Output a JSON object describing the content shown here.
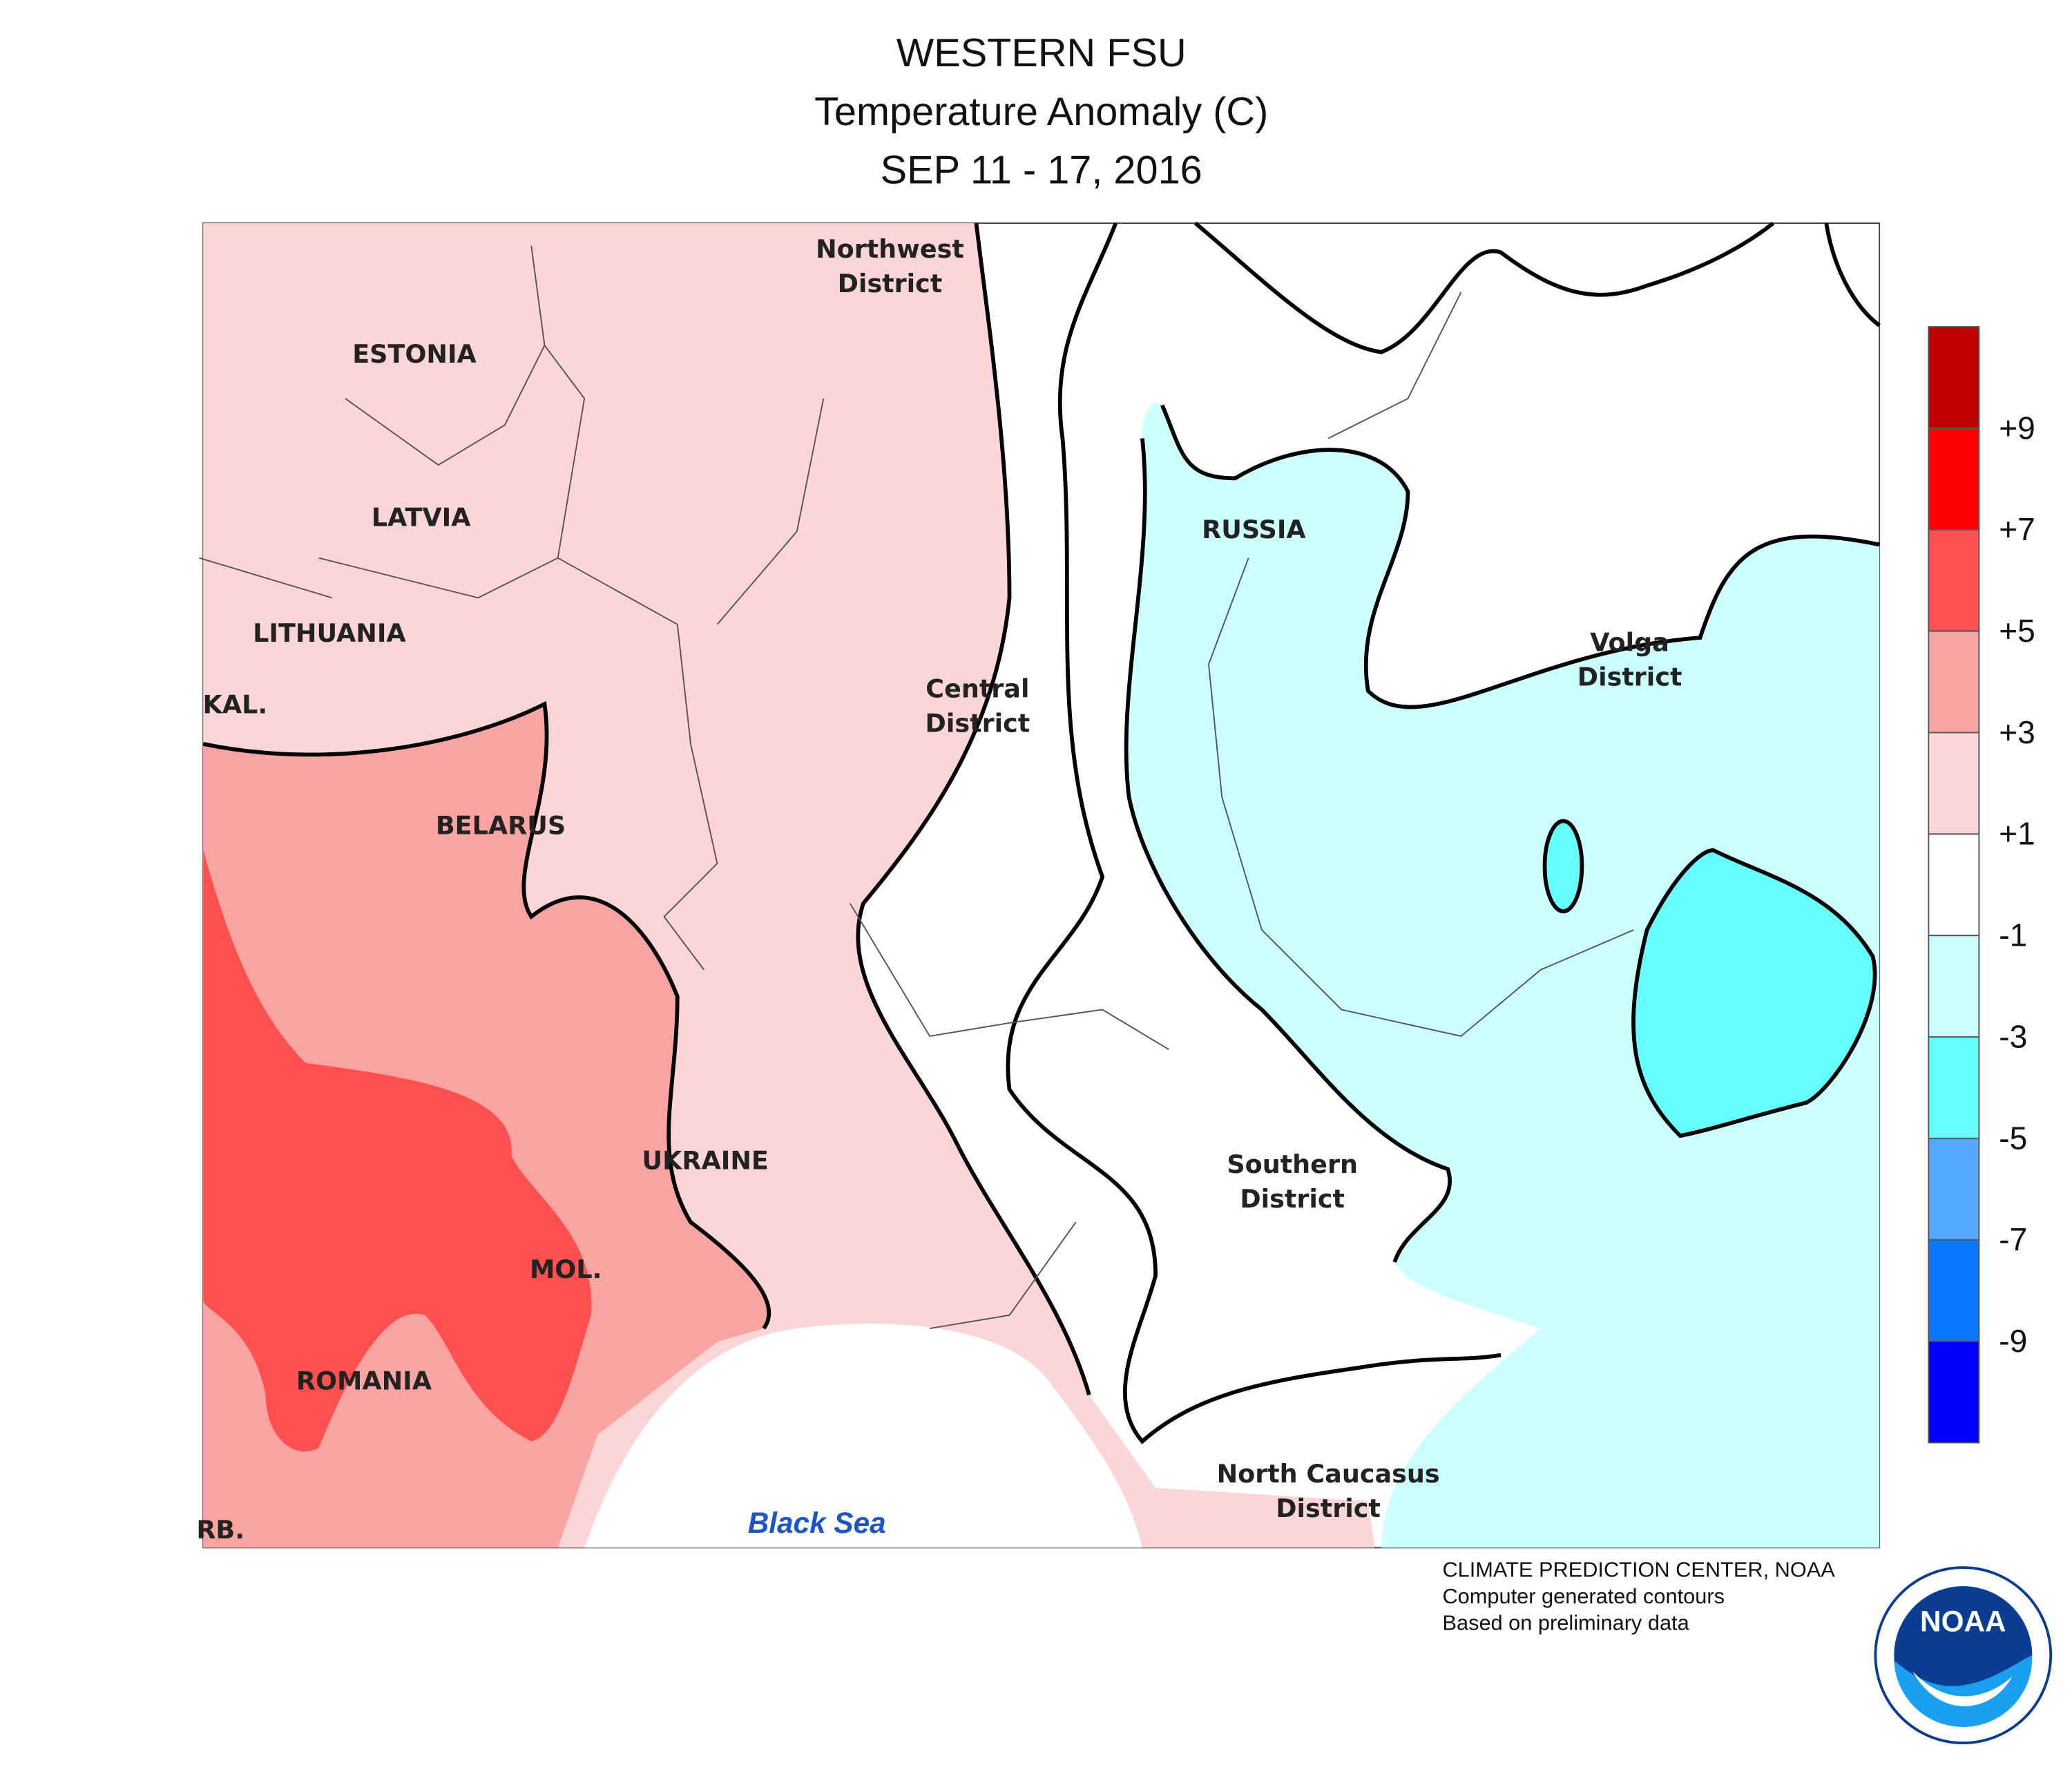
{
  "header": {
    "lines": [
      "WESTERN FSU",
      "Temperature Anomaly (C)",
      "SEP 11 - 17, 2016"
    ]
  },
  "map": {
    "labels": [
      "Northwest",
      "District",
      "ESTONIA",
      "LATVIA",
      "LITHUANIA",
      "KAL.",
      "BELARUS",
      "Central",
      "District",
      "RUSSIA",
      "Volga",
      "District",
      "UKRAINE",
      "MOL.",
      "ROMANIA",
      "Southern",
      "District",
      "North Caucasus",
      "District",
      "RB."
    ],
    "sea_label": "Black Sea"
  },
  "legend": {
    "colors": [
      "#c00000",
      "#ff0000",
      "#ff5050",
      "#faa3a3",
      "#fcd6d6",
      "#ffffff",
      "#ccffff",
      "#66ffff",
      "#55a8ff",
      "#0a78ff",
      "#0000ff"
    ],
    "labels": [
      "+9",
      "+7",
      "+5",
      "+3",
      "+1",
      "-1",
      "-3",
      "-5",
      "-7",
      "-9"
    ]
  },
  "footer": {
    "lines": [
      "CLIMATE PREDICTION CENTER, NOAA",
      "Computer generated contours",
      "Based on preliminary data"
    ]
  },
  "logo": {
    "text": "NOAA"
  }
}
